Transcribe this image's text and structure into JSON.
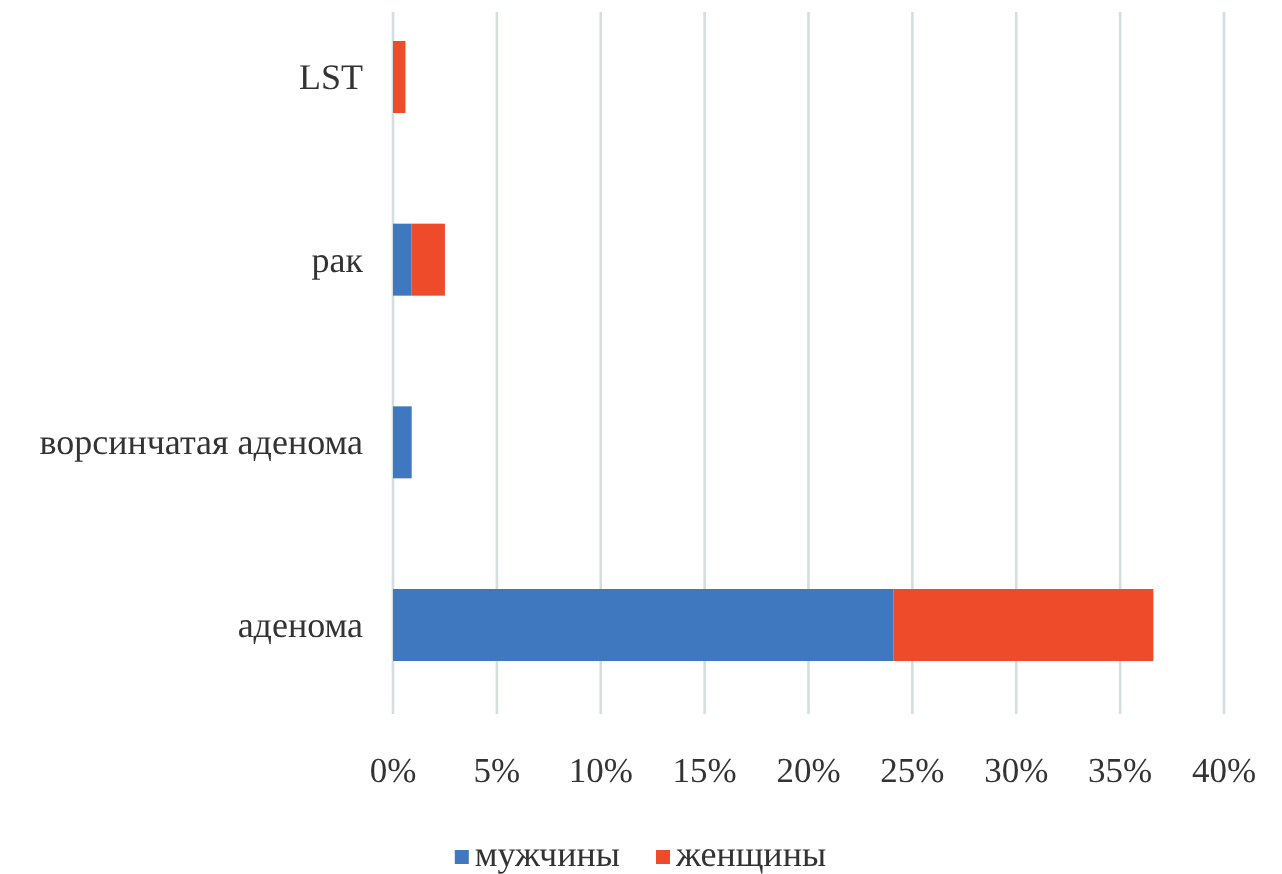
{
  "chart_data": {
    "type": "bar",
    "orientation": "horizontal",
    "stacked": true,
    "categories": [
      "LST",
      "рак",
      "ворсинчатая аденома",
      "аденома"
    ],
    "series": [
      {
        "name": "мужчины",
        "color": "#4078c0",
        "values": [
          0,
          0.9,
          0.9,
          24.1
        ]
      },
      {
        "name": "женщины",
        "color": "#ee4b2b",
        "values": [
          0.6,
          1.6,
          0,
          12.5
        ]
      }
    ],
    "xlim": [
      0,
      40
    ],
    "xticks": [
      {
        "value": 0,
        "label": "0%"
      },
      {
        "value": 5,
        "label": "5%"
      },
      {
        "value": 10,
        "label": "10%"
      },
      {
        "value": 15,
        "label": "15%"
      },
      {
        "value": 20,
        "label": "20%"
      },
      {
        "value": 25,
        "label": "25%"
      },
      {
        "value": 30,
        "label": "30%"
      },
      {
        "value": 35,
        "label": "35%"
      },
      {
        "value": 40,
        "label": "40%"
      }
    ],
    "grid": "x",
    "legend": "bottom"
  }
}
